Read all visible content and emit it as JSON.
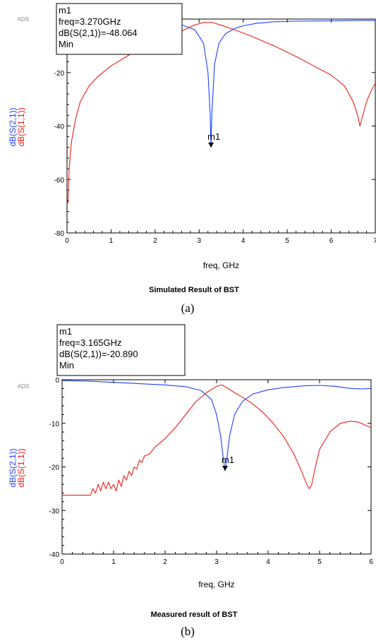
{
  "chart_data": [
    {
      "type": "line",
      "panel": "(a)",
      "caption": "Simulated  Result of BST",
      "ads_tag": "ADS",
      "xlabel": "freq, GHz",
      "ylabel_blue": "dB(S(2,1))",
      "ylabel_red": "dB(S(1,1))",
      "xlim": [
        0,
        7
      ],
      "ylim": [
        -80,
        0
      ],
      "xticks": [
        "0",
        "1",
        "2",
        "3",
        "4",
        "5",
        "6",
        "7"
      ],
      "yticks": [
        "0",
        "-20",
        "-40",
        "-60",
        "-80"
      ],
      "marker": {
        "name": "m1",
        "line1": "m1",
        "line2": "freq=3.270GHz",
        "line3": "dB(S(2,1))=-48.064",
        "line4": "Min",
        "x": 3.27,
        "y": -48.064
      },
      "colors": {
        "s21": "#1f3fff",
        "s11": "#e8201a"
      },
      "series": [
        {
          "name": "dB(S(2,1))",
          "x": [
            0.0,
            0.5,
            1.0,
            1.5,
            2.0,
            2.5,
            2.9,
            3.1,
            3.2,
            3.25,
            3.27,
            3.29,
            3.35,
            3.45,
            3.6,
            3.8,
            4.0,
            4.3,
            4.7,
            5.2,
            5.8,
            6.3,
            6.7,
            7.0
          ],
          "y": [
            -0.1,
            -0.2,
            -0.3,
            -0.5,
            -0.8,
            -1.5,
            -4.0,
            -9.0,
            -20.0,
            -35.0,
            -48.0,
            -35.0,
            -17.0,
            -9.0,
            -5.5,
            -3.6,
            -2.5,
            -1.6,
            -1.0,
            -0.8,
            -0.7,
            -0.6,
            -0.5,
            -0.5
          ]
        },
        {
          "name": "dB(S(1,1))",
          "x": [
            0.02,
            0.05,
            0.1,
            0.2,
            0.3,
            0.5,
            0.7,
            1.0,
            1.4,
            1.8,
            2.2,
            2.6,
            2.9,
            3.1,
            3.3,
            3.5,
            3.8,
            4.2,
            4.7,
            5.2,
            5.6,
            6.0,
            6.3,
            6.5,
            6.6,
            6.65,
            6.7,
            6.8,
            6.9,
            7.0
          ],
          "y": [
            -69.0,
            -56.0,
            -46.0,
            -37.0,
            -31.0,
            -25.0,
            -21.5,
            -17.5,
            -13.5,
            -10.5,
            -7.5,
            -4.5,
            -2.2,
            -1.3,
            -1.3,
            -2.3,
            -4.0,
            -6.5,
            -10.0,
            -14.0,
            -17.5,
            -21.0,
            -25.0,
            -31.0,
            -36.0,
            -40.0,
            -37.0,
            -31.0,
            -27.0,
            -24.0
          ]
        }
      ]
    },
    {
      "type": "line",
      "panel": "(b)",
      "caption": "Measured result of BST",
      "ads_tag": "ADS",
      "xlabel": "freq, GHz",
      "ylabel_blue": "dB(S(2,1))",
      "ylabel_red": "dB(S(1,1))",
      "xlim": [
        0,
        6
      ],
      "ylim": [
        -40,
        0
      ],
      "xticks": [
        "0",
        "1",
        "2",
        "3",
        "4",
        "5",
        "6"
      ],
      "yticks": [
        "0",
        "-10",
        "-20",
        "-30",
        "-40"
      ],
      "marker": {
        "name": "m1",
        "line1": "m1",
        "line2": "freq=3.165GHz",
        "line3": "dB(S(2,1))=-20.890",
        "line4": "Min",
        "x": 3.165,
        "y": -20.89
      },
      "colors": {
        "s21": "#1f3fff",
        "s11": "#e8201a"
      },
      "series": [
        {
          "name": "dB(S(2,1))",
          "x": [
            0.0,
            0.5,
            1.0,
            1.5,
            2.0,
            2.4,
            2.7,
            2.9,
            3.0,
            3.08,
            3.13,
            3.165,
            3.2,
            3.25,
            3.35,
            3.5,
            3.7,
            4.0,
            4.3,
            4.7,
            5.0,
            5.3,
            5.6,
            5.8,
            6.0
          ],
          "y": [
            -0.2,
            -0.3,
            -0.6,
            -0.9,
            -1.2,
            -1.6,
            -2.5,
            -4.5,
            -8.0,
            -13.0,
            -18.0,
            -20.9,
            -18.0,
            -13.0,
            -8.0,
            -5.0,
            -3.3,
            -2.3,
            -1.8,
            -1.4,
            -1.3,
            -1.5,
            -2.0,
            -2.1,
            -2.0
          ]
        },
        {
          "name": "dB(S(1,1))",
          "x": [
            0.0,
            0.3,
            0.55,
            0.6,
            0.65,
            0.7,
            0.75,
            0.8,
            0.85,
            0.9,
            0.95,
            1.0,
            1.05,
            1.1,
            1.15,
            1.2,
            1.25,
            1.3,
            1.35,
            1.4,
            1.45,
            1.5,
            1.55,
            1.6,
            1.7,
            1.8,
            2.0,
            2.2,
            2.4,
            2.6,
            2.8,
            3.0,
            3.1,
            3.2,
            3.35,
            3.5,
            3.7,
            3.9,
            4.1,
            4.3,
            4.5,
            4.65,
            4.75,
            4.8,
            4.85,
            4.9,
            5.0,
            5.2,
            5.4,
            5.6,
            5.75,
            5.9,
            6.0
          ],
          "y": [
            -26.5,
            -26.5,
            -26.5,
            -25.0,
            -26.0,
            -24.0,
            -25.5,
            -23.5,
            -25.0,
            -23.5,
            -25.0,
            -24.0,
            -25.5,
            -23.0,
            -24.5,
            -22.0,
            -23.0,
            -21.0,
            -22.0,
            -20.0,
            -20.5,
            -18.5,
            -19.0,
            -17.5,
            -17.0,
            -15.5,
            -13.5,
            -11.0,
            -8.0,
            -5.0,
            -3.0,
            -1.5,
            -1.2,
            -1.8,
            -3.0,
            -4.0,
            -5.5,
            -7.5,
            -10.0,
            -13.0,
            -17.0,
            -21.0,
            -24.0,
            -25.0,
            -24.0,
            -21.0,
            -16.0,
            -12.0,
            -10.0,
            -9.5,
            -9.7,
            -10.5,
            -11.0
          ]
        }
      ]
    }
  ]
}
